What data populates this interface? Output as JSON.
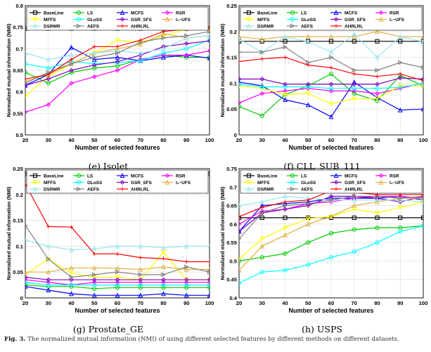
{
  "x_label": "Number of selected features",
  "y_label": "Normalized mutual information (NMI)",
  "method_colors": {
    "BaseLine": "#000000",
    "LS": "#00cc00",
    "MCFS": "#0000ff",
    "RSR": "#ff00ff",
    "MFFS": "#ffff00",
    "GLoSS": "#00ffff",
    "GSR_SFS": "#8000c0",
    "l1-UFS": "#e0b040",
    "DSRMR": "#99e6ee",
    "AEFS": "#808080",
    "AHRLRL": "#ff0000"
  },
  "legend_entries": [
    {
      "key": "BaseLine",
      "label": "BaseLine",
      "marker": "square"
    },
    {
      "key": "LS",
      "label": "LS",
      "marker": "circle"
    },
    {
      "key": "MCFS",
      "label": "MCFS",
      "marker": "triangle"
    },
    {
      "key": "RSR",
      "label": "RSR",
      "marker": "diamond"
    },
    {
      "key": "MFFS",
      "label": "MFFS",
      "marker": "triangle-down"
    },
    {
      "key": "GLoSS",
      "label": "GLoSS",
      "marker": "circle"
    },
    {
      "key": "GSR_SFS",
      "label": "GSR_SFS",
      "marker": "diamond"
    },
    {
      "key": "l1-UFS",
      "label": "l₁−UFS",
      "marker": "triangle"
    },
    {
      "key": "DSRMR",
      "label": "DSRMR",
      "marker": "triangle"
    },
    {
      "key": "AEFS",
      "label": "AEFS",
      "marker": "triangle-right"
    },
    {
      "key": "AHRLRL",
      "label": "AHRLRL",
      "marker": "plus"
    }
  ],
  "subcaptions": [
    "(e) Isolet",
    "(f) CLL_SUB_111",
    "(g) Prostate_GE",
    "(h) USPS"
  ],
  "caption": {
    "label": "Fig. 3.",
    "text": "The normalized mutual information (NMI) of using different selected features by different methods on different datasets."
  },
  "chart_data": [
    {
      "type": "line",
      "dataset": "Isolet",
      "x": [
        20,
        30,
        40,
        50,
        60,
        70,
        80,
        90,
        100
      ],
      "ylim": [
        0.5,
        0.8
      ],
      "yticks": [
        0.5,
        0.55,
        0.6,
        0.65,
        0.7,
        0.75,
        0.8
      ],
      "ytick_labels": [
        "0.5",
        "0.55",
        "0.6",
        "0.65",
        "0.7",
        "0.75",
        "0.8"
      ],
      "xlabel": "Number of selected features",
      "ylabel": "Normalized mutual information (NMI)",
      "series": [
        {
          "name": "BaseLine",
          "values": [
            0.747,
            0.747,
            0.747,
            0.747,
            0.747,
            0.747,
            0.747,
            0.747,
            0.747
          ]
        },
        {
          "name": "LS",
          "values": [
            0.645,
            0.62,
            0.645,
            0.655,
            0.66,
            0.675,
            0.685,
            0.68,
            0.68
          ]
        },
        {
          "name": "MCFS",
          "values": [
            0.615,
            0.64,
            0.703,
            0.675,
            0.68,
            0.672,
            0.68,
            0.685,
            0.678
          ]
        },
        {
          "name": "RSR",
          "values": [
            0.553,
            0.57,
            0.62,
            0.635,
            0.65,
            0.675,
            0.685,
            0.685,
            0.695
          ]
        },
        {
          "name": "MFFS",
          "values": [
            0.59,
            0.635,
            0.665,
            0.69,
            0.72,
            0.715,
            0.73,
            0.745,
            0.745
          ]
        },
        {
          "name": "GLoSS",
          "values": [
            0.665,
            0.655,
            0.67,
            0.665,
            0.668,
            0.672,
            0.69,
            0.7,
            0.72
          ]
        },
        {
          "name": "GSR_SFS",
          "values": [
            0.615,
            0.63,
            0.65,
            0.662,
            0.67,
            0.685,
            0.705,
            0.712,
            0.718
          ]
        },
        {
          "name": "l1-UFS",
          "values": [
            0.625,
            0.64,
            0.665,
            0.69,
            0.7,
            0.71,
            0.735,
            0.725,
            0.73
          ]
        },
        {
          "name": "DSRMR",
          "values": [
            0.69,
            0.675,
            0.685,
            0.69,
            0.695,
            0.69,
            0.7,
            0.725,
            0.73
          ]
        },
        {
          "name": "AEFS",
          "values": [
            0.62,
            0.645,
            0.665,
            0.68,
            0.69,
            0.715,
            0.725,
            0.73,
            0.74
          ]
        },
        {
          "name": "AHRLRL",
          "values": [
            0.63,
            0.64,
            0.675,
            0.705,
            0.705,
            0.72,
            0.74,
            0.745,
            0.748
          ]
        }
      ]
    },
    {
      "type": "line",
      "dataset": "CLL_SUB_111",
      "x": [
        20,
        30,
        40,
        50,
        60,
        70,
        80,
        90,
        100
      ],
      "ylim": [
        0,
        0.25
      ],
      "yticks": [
        0,
        0.05,
        0.1,
        0.15,
        0.2,
        0.25
      ],
      "ytick_labels": [
        "0",
        "0.05",
        "0.1",
        "0.15",
        "0.2",
        "0.25"
      ],
      "xlabel": "Number of selected features",
      "ylabel": "Normalized mutual information (NMI)",
      "series": [
        {
          "name": "BaseLine",
          "values": [
            0.181,
            0.181,
            0.181,
            0.181,
            0.181,
            0.181,
            0.181,
            0.181,
            0.181
          ]
        },
        {
          "name": "LS",
          "values": [
            0.055,
            0.037,
            0.078,
            0.095,
            0.118,
            0.08,
            0.066,
            0.115,
            0.095
          ]
        },
        {
          "name": "MCFS",
          "values": [
            0.102,
            0.095,
            0.068,
            0.058,
            0.035,
            0.102,
            0.072,
            0.048,
            0.05
          ]
        },
        {
          "name": "RSR",
          "values": [
            0.062,
            0.08,
            0.085,
            0.09,
            0.085,
            0.085,
            0.08,
            0.09,
            0.1
          ]
        },
        {
          "name": "MFFS",
          "values": [
            0.095,
            0.09,
            0.078,
            0.08,
            0.06,
            0.07,
            0.07,
            0.095,
            0.095
          ]
        },
        {
          "name": "GLoSS",
          "values": [
            0.098,
            0.093,
            0.093,
            0.093,
            0.09,
            0.09,
            0.09,
            0.092,
            0.1
          ]
        },
        {
          "name": "GSR_SFS",
          "values": [
            0.108,
            0.108,
            0.098,
            0.098,
            0.098,
            0.098,
            0.098,
            0.11,
            0.108
          ]
        },
        {
          "name": "l1-UFS",
          "values": [
            0.19,
            0.185,
            0.19,
            0.19,
            0.19,
            0.19,
            0.2,
            0.19,
            0.19
          ]
        },
        {
          "name": "DSRMR",
          "values": [
            0.185,
            0.16,
            0.19,
            0.18,
            0.16,
            0.195,
            0.15,
            0.19,
            0.18
          ]
        },
        {
          "name": "AEFS",
          "values": [
            0.16,
            0.16,
            0.17,
            0.14,
            0.15,
            0.125,
            0.125,
            0.14,
            0.13
          ]
        },
        {
          "name": "AHRLRL",
          "values": [
            0.142,
            0.147,
            0.15,
            0.135,
            0.13,
            0.118,
            0.113,
            0.118,
            0.105
          ]
        }
      ]
    },
    {
      "type": "line",
      "dataset": "Prostate_GE",
      "x": [
        20,
        30,
        40,
        50,
        60,
        70,
        80,
        90,
        100
      ],
      "ylim": [
        0,
        0.25
      ],
      "yticks": [
        0,
        0.05,
        0.1,
        0.15,
        0.2,
        0.25
      ],
      "ytick_labels": [
        "0",
        "0.05",
        "0.1",
        "0.15",
        "0.2",
        "0.25"
      ],
      "xlabel": "Number of selected features",
      "ylabel": "Normalized mutual information (NMI)",
      "series": [
        {
          "name": "BaseLine",
          "values": [
            0.24,
            0.24,
            0.24,
            0.24,
            0.24,
            0.24,
            0.24,
            0.24,
            0.24
          ]
        },
        {
          "name": "LS",
          "values": [
            0.025,
            0.022,
            0.022,
            0.018,
            0.02,
            0.02,
            0.02,
            0.02,
            0.02
          ]
        },
        {
          "name": "MCFS",
          "values": [
            0.022,
            0.015,
            0.008,
            0.005,
            0.005,
            0.005,
            0.008,
            0.005,
            0.005
          ]
        },
        {
          "name": "RSR",
          "values": [
            0.035,
            0.03,
            0.025,
            0.03,
            0.03,
            0.03,
            0.03,
            0.03,
            0.03
          ]
        },
        {
          "name": "MFFS",
          "values": [
            0.045,
            0.075,
            0.048,
            0.04,
            0.04,
            0.035,
            0.088,
            0.035,
            0.035
          ]
        },
        {
          "name": "GLoSS",
          "values": [
            0.03,
            0.025,
            0.025,
            0.025,
            0.025,
            0.025,
            0.025,
            0.025,
            0.025
          ]
        },
        {
          "name": "GSR_SFS",
          "values": [
            0.04,
            0.035,
            0.035,
            0.035,
            0.035,
            0.035,
            0.035,
            0.035,
            0.035
          ]
        },
        {
          "name": "l1-UFS",
          "values": [
            0.05,
            0.05,
            0.058,
            0.058,
            0.057,
            0.055,
            0.06,
            0.055,
            0.055
          ]
        },
        {
          "name": "DSRMR",
          "values": [
            0.112,
            0.1,
            0.093,
            0.095,
            0.1,
            0.1,
            0.097,
            0.1,
            0.1
          ]
        },
        {
          "name": "AEFS",
          "values": [
            0.14,
            0.075,
            0.04,
            0.045,
            0.05,
            0.045,
            0.045,
            0.06,
            0.05
          ]
        },
        {
          "name": "AHRLRL",
          "values": [
            0.22,
            0.138,
            0.137,
            0.085,
            0.085,
            0.078,
            0.076,
            0.07,
            0.07
          ]
        }
      ]
    },
    {
      "type": "line",
      "dataset": "USPS",
      "x": [
        20,
        30,
        40,
        50,
        60,
        70,
        80,
        90,
        100
      ],
      "ylim": [
        0.4,
        0.75
      ],
      "yticks": [
        0.4,
        0.45,
        0.5,
        0.55,
        0.6,
        0.65,
        0.7,
        0.75
      ],
      "ytick_labels": [
        "0.4",
        "0.45",
        "0.5",
        "0.55",
        "0.6",
        "0.65",
        "0.7",
        "0.75"
      ],
      "xlabel": "Number of selected features",
      "ylabel": "Normalized mutual information (NMI)",
      "series": [
        {
          "name": "BaseLine",
          "values": [
            0.617,
            0.617,
            0.617,
            0.617,
            0.617,
            0.617,
            0.617,
            0.617,
            0.617
          ]
        },
        {
          "name": "LS",
          "values": [
            0.5,
            0.51,
            0.52,
            0.55,
            0.575,
            0.585,
            0.59,
            0.59,
            0.595
          ]
        },
        {
          "name": "MCFS",
          "values": [
            0.58,
            0.65,
            0.655,
            0.66,
            0.67,
            0.67,
            0.67,
            0.675,
            0.665
          ]
        },
        {
          "name": "RSR",
          "values": [
            0.6,
            0.635,
            0.64,
            0.655,
            0.66,
            0.67,
            0.675,
            0.675,
            0.67
          ]
        },
        {
          "name": "MFFS",
          "values": [
            0.505,
            0.56,
            0.59,
            0.615,
            0.62,
            0.64,
            0.63,
            0.645,
            0.66
          ]
        },
        {
          "name": "GLoSS",
          "values": [
            0.44,
            0.47,
            0.475,
            0.49,
            0.51,
            0.525,
            0.55,
            0.58,
            0.595
          ]
        },
        {
          "name": "GSR_SFS",
          "values": [
            0.58,
            0.63,
            0.64,
            0.65,
            0.675,
            0.675,
            0.67,
            0.66,
            0.675
          ]
        },
        {
          "name": "l1-UFS",
          "values": [
            0.475,
            0.54,
            0.57,
            0.6,
            0.62,
            0.65,
            0.66,
            0.67,
            0.67
          ]
        },
        {
          "name": "DSRMR",
          "values": [
            0.65,
            0.66,
            0.675,
            0.67,
            0.665,
            0.665,
            0.665,
            0.665,
            0.66
          ]
        },
        {
          "name": "AEFS",
          "values": [
            0.56,
            0.63,
            0.65,
            0.655,
            0.665,
            0.675,
            0.675,
            0.67,
            0.675
          ]
        },
        {
          "name": "AHRLRL",
          "values": [
            0.62,
            0.645,
            0.66,
            0.665,
            0.69,
            0.685,
            0.68,
            0.68,
            0.68
          ]
        }
      ]
    }
  ]
}
